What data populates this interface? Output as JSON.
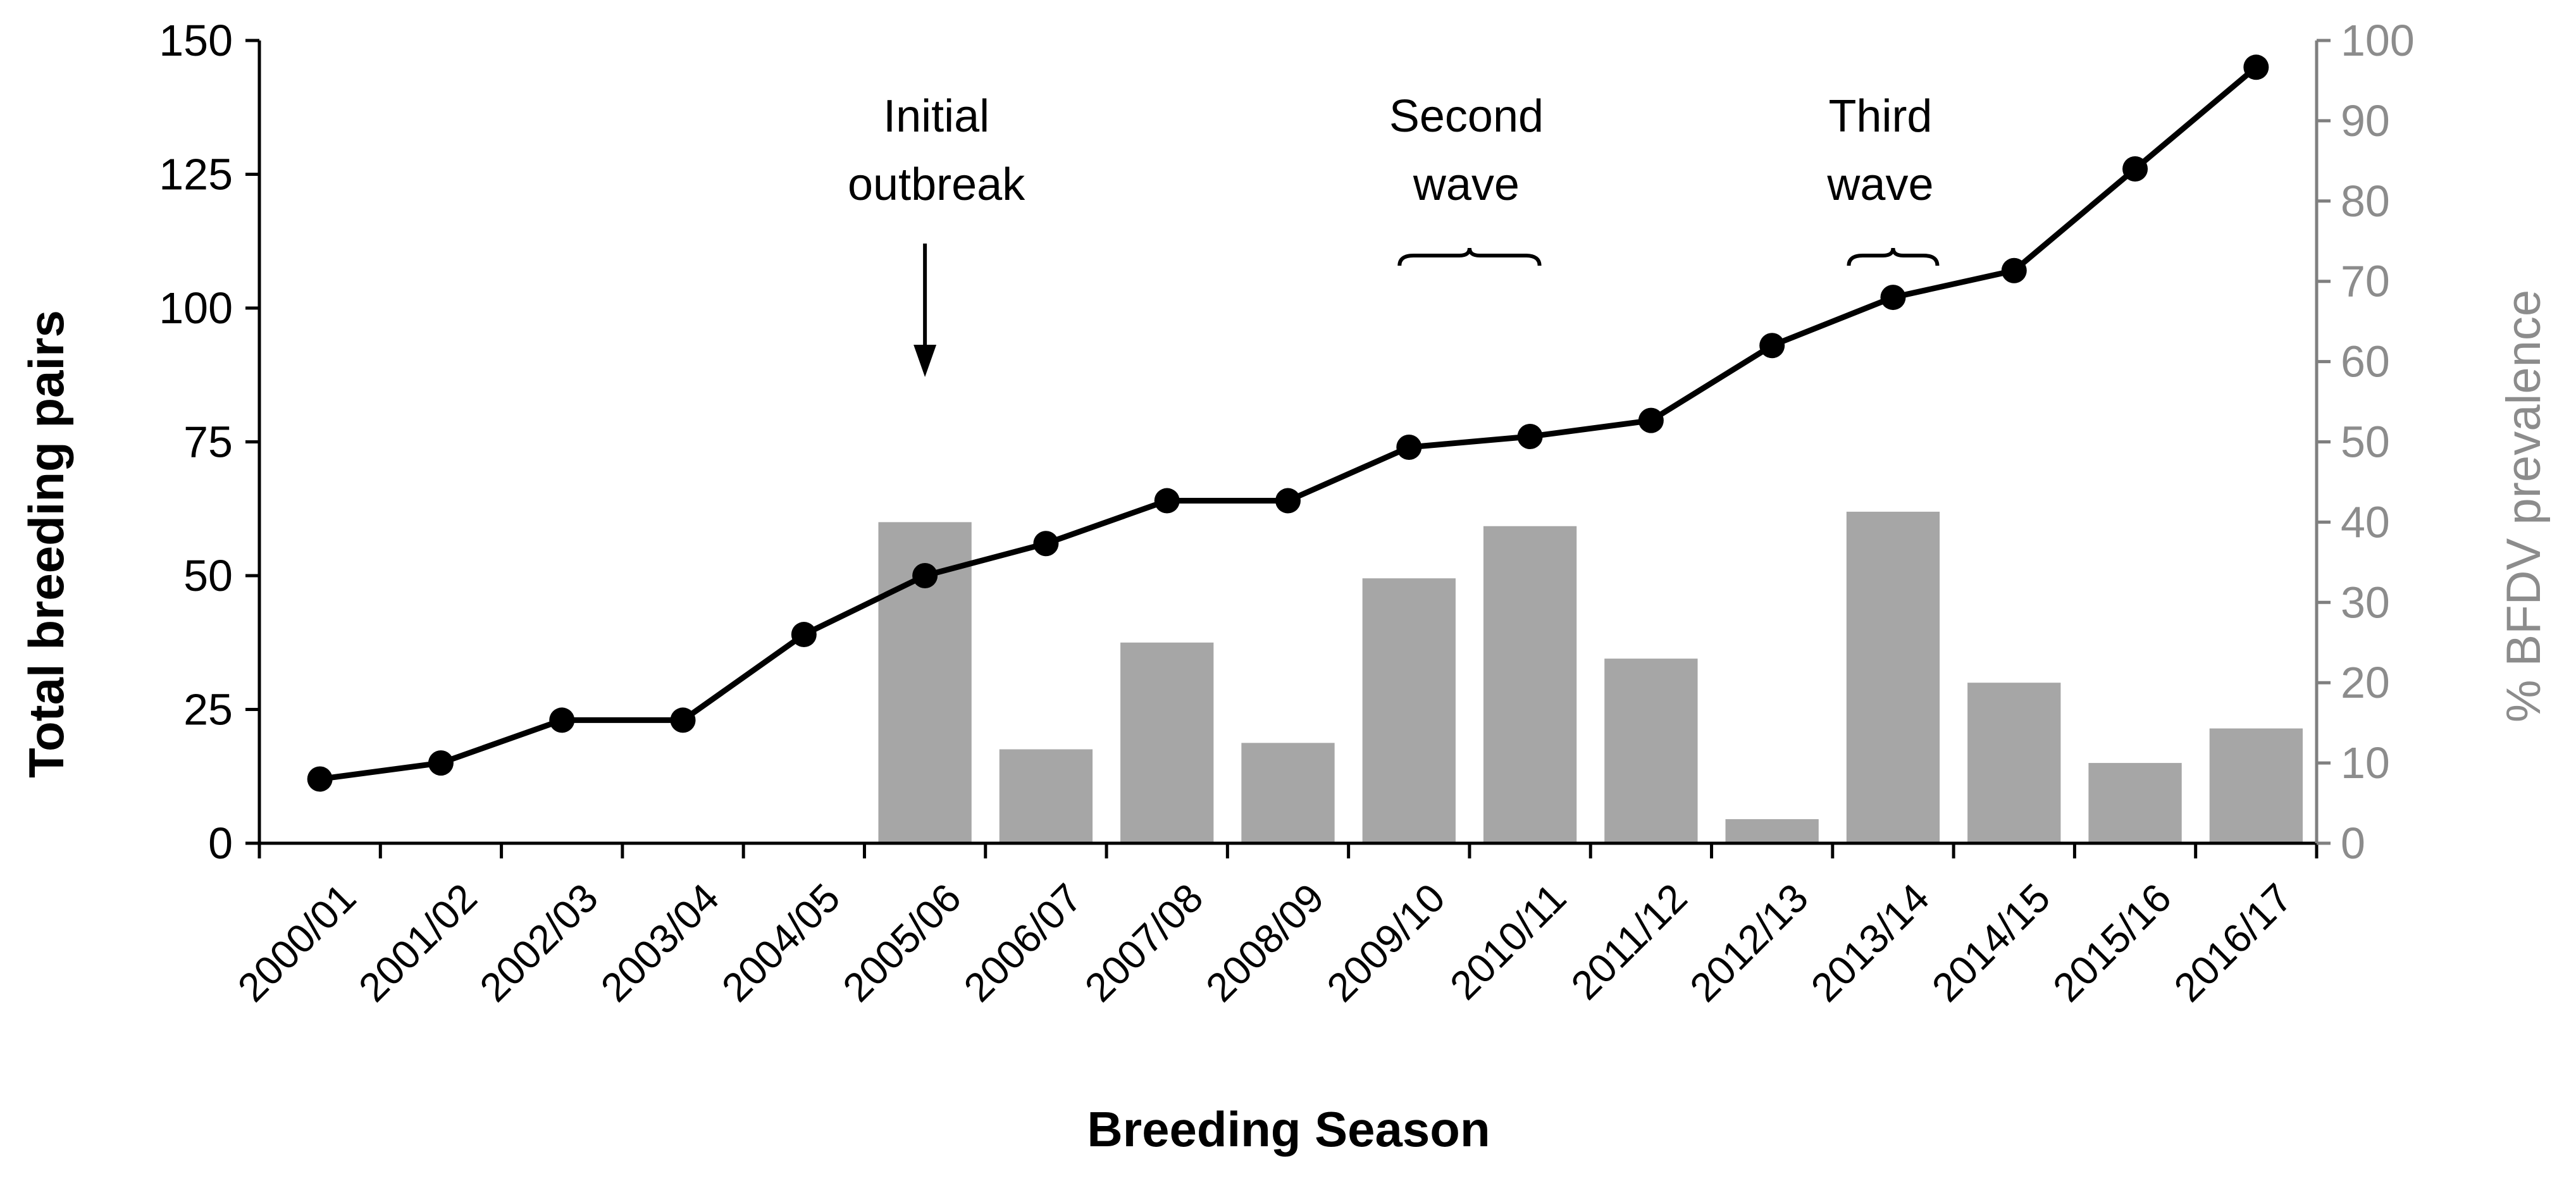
{
  "chart_data": {
    "type": "bar+line",
    "title": "",
    "categories": [
      "2000/01",
      "2001/02",
      "2002/03",
      "2003/04",
      "2004/05",
      "2005/06",
      "2006/07",
      "2007/08",
      "2008/09",
      "2009/10",
      "2010/11",
      "2011/12",
      "2012/13",
      "2013/14",
      "2014/15",
      "2015/16",
      "2016/17"
    ],
    "xlabel": "Breeding Season",
    "ylabel_left": "Total breeding pairs",
    "ylabel_right": "% BFDV prevalence",
    "ylim_left": [
      0,
      150
    ],
    "yticks_left": [
      "0",
      "25",
      "50",
      "75",
      "100",
      "125",
      "150"
    ],
    "ylim_right": [
      0,
      100
    ],
    "yticks_right": [
      "0",
      "10",
      "20",
      "30",
      "40",
      "50",
      "60",
      "70",
      "80",
      "90",
      "100"
    ],
    "grid": false,
    "series": [
      {
        "name": "% BFDV prevalence",
        "type": "bar",
        "axis": "right",
        "color": "#a6a6a6",
        "values": [
          null,
          null,
          null,
          null,
          null,
          40,
          11.7,
          25,
          12.5,
          33,
          39.5,
          23,
          3,
          41.3,
          20,
          10,
          14.3
        ]
      },
      {
        "name": "Total breeding pairs",
        "type": "line",
        "axis": "left",
        "color": "#000000",
        "values": [
          12,
          15,
          23,
          23,
          39,
          50,
          56,
          64,
          64,
          74,
          76,
          79,
          93,
          102,
          107,
          126,
          145
        ]
      }
    ],
    "annotations": [
      {
        "kind": "arrow",
        "text_lines": [
          "Initial",
          "outbreak"
        ],
        "at_category": "2005/06"
      },
      {
        "kind": "brace",
        "text_lines": [
          "Second",
          "wave"
        ],
        "from_category": "2009/10",
        "to_category": "2010/11"
      },
      {
        "kind": "brace",
        "text_lines": [
          "Third",
          "wave"
        ],
        "from_category": "2013/14",
        "to_category": "2013/14"
      }
    ]
  }
}
